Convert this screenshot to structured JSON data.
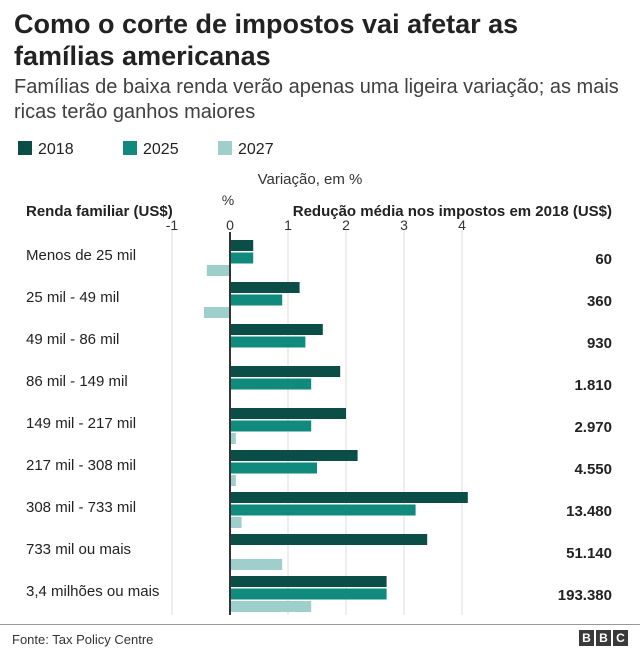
{
  "header": {
    "title": "Como o corte de impostos vai afetar as famílias americanas",
    "subtitle": "Famílias de baixa renda verão apenas uma ligeira variação; as mais ricas terão ganhos maiores"
  },
  "footer": {
    "source": "Fonte: Tax Policy Centre",
    "logo_letters": [
      "B",
      "B",
      "C"
    ]
  },
  "colors": {
    "2018": "#0b4d47",
    "2025": "#118a7e",
    "2027": "#9fcfcc",
    "axis": "#333333",
    "grid": "#dddddd"
  },
  "chart_data": {
    "type": "bar",
    "orientation": "horizontal",
    "title": "Como o corte de impostos vai afetar as famílias americanas",
    "subtitle": "Famílias de baixa renda verão apenas uma ligeira variação; as mais ricas terão ganhos maiores",
    "xlabel": "Variação, em %",
    "unit_symbol": "%",
    "category_header": "Renda familiar (US$)",
    "value_header": "Redução média nos impostos em 2018 (US$)",
    "xlim": [
      -1,
      4
    ],
    "xticks": [
      "-1",
      "0",
      "1",
      "2",
      "3",
      "4"
    ],
    "grid": true,
    "legend_position": "top-left",
    "categories": [
      "Menos de 25 mil",
      "25 mil - 49 mil",
      "49 mil - 86 mil",
      "86 mil - 149 mil",
      "149 mil - 217 mil",
      "217 mil - 308 mil",
      "308 mil - 733 mil",
      "733 mil ou mais",
      "3,4 milhões ou mais"
    ],
    "series": [
      {
        "name": "2018",
        "values": [
          0.4,
          1.2,
          1.6,
          1.9,
          2.0,
          2.2,
          4.1,
          3.4,
          2.7
        ]
      },
      {
        "name": "2025",
        "values": [
          0.4,
          0.9,
          1.3,
          1.4,
          1.4,
          1.5,
          3.2,
          0.0,
          2.7
        ]
      },
      {
        "name": "2027",
        "values": [
          -0.4,
          -0.45,
          0.0,
          0.0,
          0.1,
          0.1,
          0.2,
          0.9,
          1.4
        ]
      }
    ],
    "reduction_2018": [
      "60",
      "360",
      "930",
      "1.810",
      "2.970",
      "4.550",
      "13.480",
      "51.140",
      "193.380"
    ]
  }
}
